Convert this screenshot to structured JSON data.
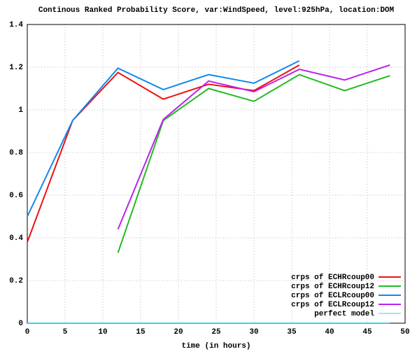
{
  "chart_data": {
    "type": "line",
    "title": "Continous Ranked Probability Score, var:WindSpeed, level:925hPa, location:DOM",
    "x_label": "time (in hours)",
    "x": [
      0,
      6,
      12,
      18,
      24,
      30,
      36,
      42,
      48
    ],
    "series": [
      {
        "name": "crps of ECHRcoup00",
        "color": "#ee1111",
        "values": [
          0.38,
          0.95,
          1.175,
          1.05,
          1.12,
          1.09,
          1.21,
          null,
          null
        ]
      },
      {
        "name": "crps of ECHRcoup12",
        "color": "#22bb22",
        "values": [
          null,
          null,
          0.33,
          0.95,
          1.1,
          1.04,
          1.165,
          1.09,
          1.16
        ]
      },
      {
        "name": "crps of ECLRcoup00",
        "color": "#1188ee",
        "values": [
          0.5,
          0.95,
          1.195,
          1.095,
          1.165,
          1.125,
          1.23,
          null,
          null
        ]
      },
      {
        "name": "crps of ECLRcoup12",
        "color": "#bb22ee",
        "values": [
          null,
          null,
          0.44,
          0.955,
          1.135,
          1.085,
          1.19,
          1.14,
          1.21
        ]
      },
      {
        "name": "perfect model",
        "color": "#44ccee",
        "values": [
          0,
          0,
          0,
          0,
          0,
          0,
          0,
          0,
          0
        ]
      }
    ],
    "xlim": [
      0,
      50
    ],
    "xticks": [
      0,
      5,
      10,
      15,
      20,
      25,
      30,
      35,
      40,
      45,
      50
    ],
    "ylim": [
      0,
      1.4
    ],
    "yticks": [
      0,
      0.2,
      0.4,
      0.6,
      0.8,
      1,
      1.2,
      1.4
    ],
    "grid": true,
    "legend": "lower right"
  }
}
